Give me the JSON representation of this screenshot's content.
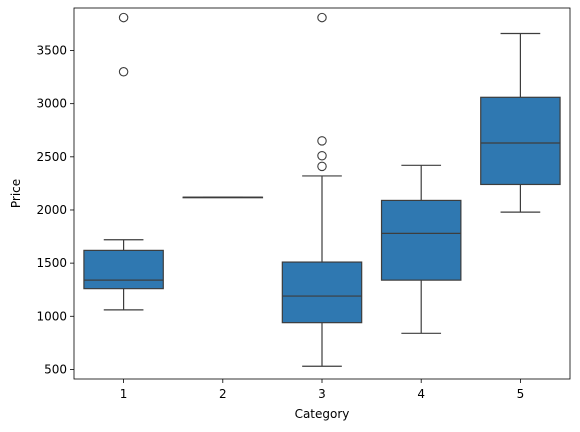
{
  "chart_data": {
    "type": "box",
    "title": "",
    "xlabel": "Category",
    "ylabel": "Price",
    "categories": [
      "1",
      "2",
      "3",
      "4",
      "5"
    ],
    "ylim": [
      410,
      3900
    ],
    "yticks": [
      500,
      1000,
      1500,
      2000,
      2500,
      3000,
      3500
    ],
    "grid": false,
    "color": "#2f78b1",
    "boxes": [
      {
        "category": "1",
        "whisker_low": 1060,
        "q1": 1260,
        "median": 1340,
        "q3": 1620,
        "whisker_high": 1720,
        "outliers": [
          3810,
          3300
        ]
      },
      {
        "category": "2",
        "whisker_low": 2120,
        "q1": 2120,
        "median": 2120,
        "q3": 2120,
        "whisker_high": 2120,
        "outliers": []
      },
      {
        "category": "3",
        "whisker_low": 530,
        "q1": 940,
        "median": 1190,
        "q3": 1510,
        "whisker_high": 2320,
        "outliers": [
          2410,
          2510,
          2650,
          3810
        ]
      },
      {
        "category": "4",
        "whisker_low": 840,
        "q1": 1340,
        "median": 1780,
        "q3": 2090,
        "whisker_high": 2420,
        "outliers": []
      },
      {
        "category": "5",
        "whisker_low": 1980,
        "q1": 2240,
        "median": 2630,
        "q3": 3060,
        "whisker_high": 3660,
        "outliers": []
      }
    ]
  }
}
